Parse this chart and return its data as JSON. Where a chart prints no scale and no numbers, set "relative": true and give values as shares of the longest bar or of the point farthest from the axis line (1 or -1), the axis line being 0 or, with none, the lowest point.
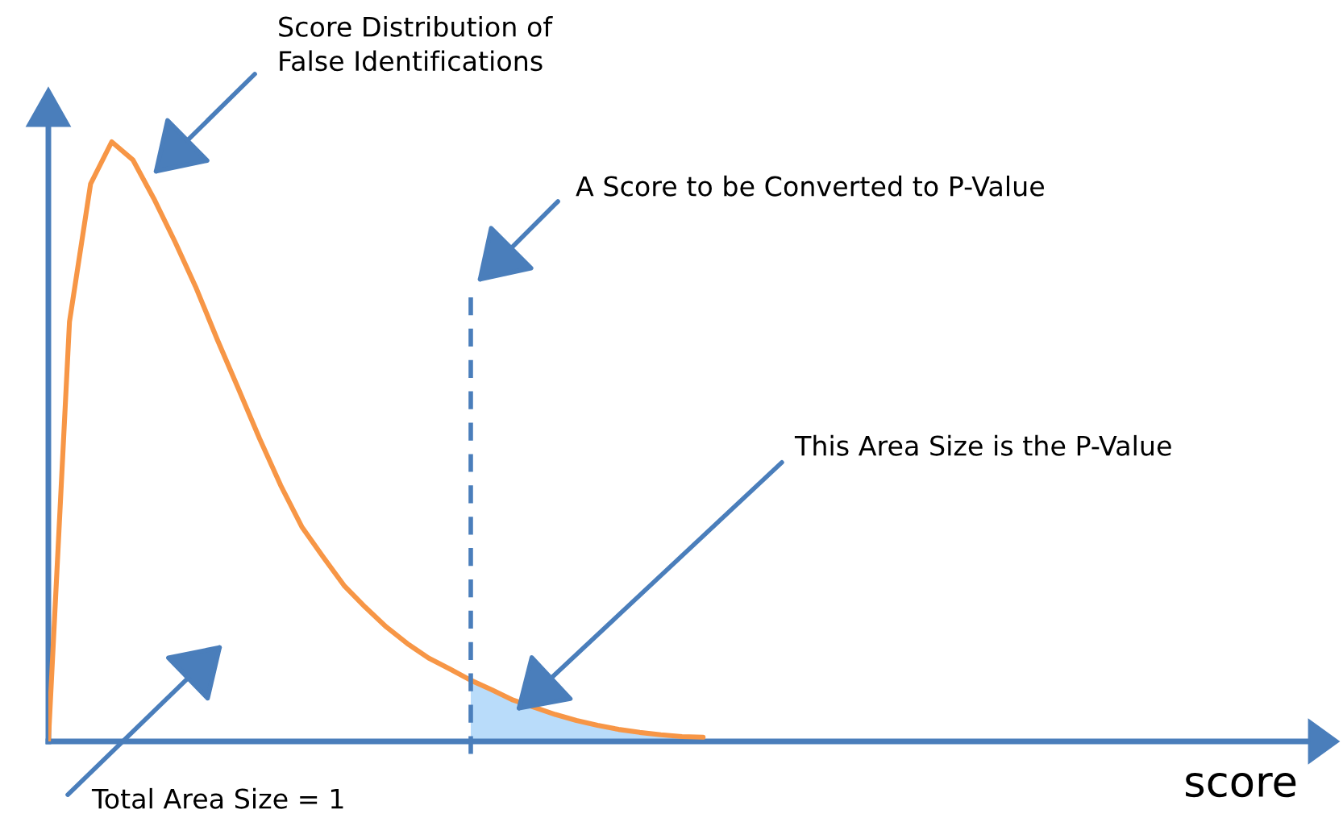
{
  "chart_data": {
    "type": "line",
    "relative": true,
    "categories": [
      null,
      null,
      null,
      null,
      null,
      null,
      null,
      null,
      null,
      null,
      null,
      null,
      null,
      null,
      null,
      null,
      null,
      null,
      null,
      null,
      null,
      null,
      null,
      null,
      null,
      null,
      null,
      null,
      null,
      null,
      null,
      null
    ],
    "series": [
      {
        "color": "#f79646",
        "values": [
          0,
          0.7,
          0.93,
          1,
          0.97,
          0.905,
          0.833,
          0.756,
          0.67,
          0.588,
          0.505,
          0.427,
          0.358,
          0.308,
          0.26,
          0.224,
          0.191,
          0.163,
          0.139,
          0.121,
          0.102,
          0.086,
          0.069,
          0.057,
          0.045,
          0.035,
          0.027,
          0.02,
          0.015,
          0.011,
          0.008,
          0.007
        ]
      },
      {
        "type": "area",
        "color": "#b9dcfa",
        "values": [
          null,
          null,
          null,
          null,
          null,
          null,
          null,
          null,
          null,
          null,
          null,
          null,
          null,
          null,
          null,
          null,
          null,
          null,
          null,
          null,
          0.102,
          0.086,
          0.069,
          0.057,
          0.045,
          0.035,
          0.027,
          0.02,
          0.015,
          0.011,
          0.008,
          0.007
        ]
      }
    ],
    "annotations": [
      "Score Distribution of\nFalse Identifications",
      "A Score to be Converted to P-Value",
      "This Area Size is the P-Value",
      "Total Area Size = 1",
      "score"
    ]
  }
}
